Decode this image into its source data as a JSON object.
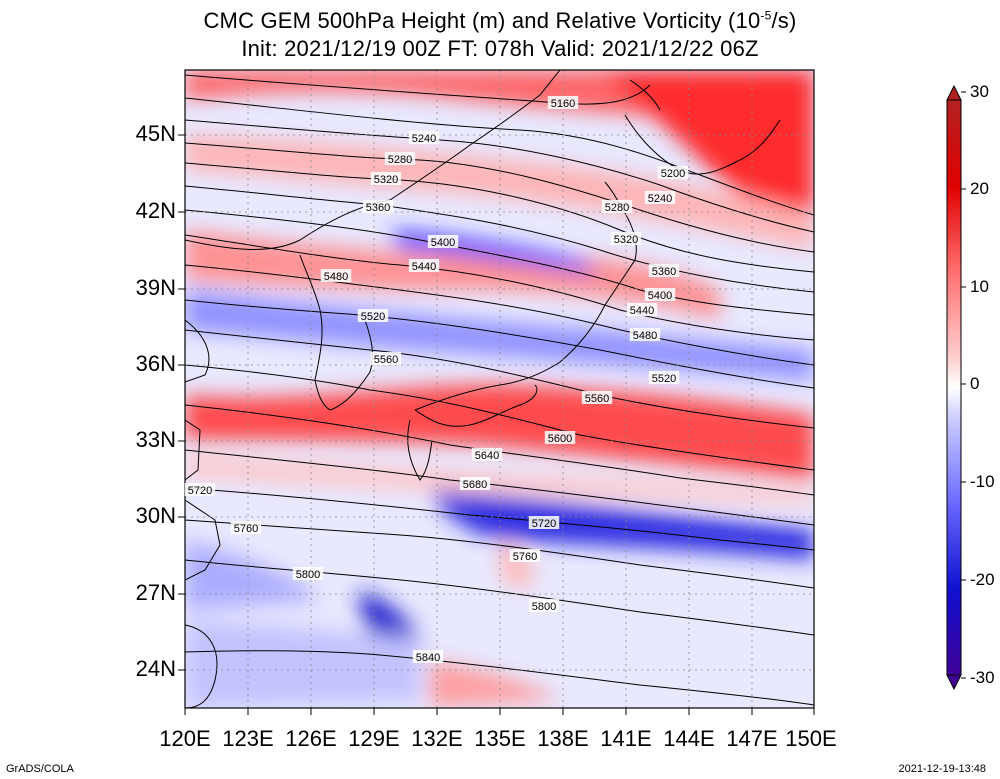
{
  "title": {
    "line1": "CMC GEM 500hPa Height (m) and Relative Vorticity (10",
    "line1_sup": "-5",
    "line1_end": "/s)",
    "line2": "Init: 2021/12/19 00Z  FT: 078h  Valid: 2021/12/22 06Z"
  },
  "map": {
    "lon_range": [
      120,
      150
    ],
    "lat_range": [
      22.5,
      47.5
    ],
    "lat_ticks": [
      "45N",
      "42N",
      "39N",
      "36N",
      "33N",
      "30N",
      "27N",
      "24N"
    ],
    "lon_ticks": [
      "120E",
      "123E",
      "126E",
      "129E",
      "132E",
      "135E",
      "138E",
      "141E",
      "144E",
      "147E",
      "150E"
    ],
    "contour_labels": [
      {
        "text": "5160"
      },
      {
        "text": "5200"
      },
      {
        "text": "5240"
      },
      {
        "text": "5240"
      },
      {
        "text": "5280"
      },
      {
        "text": "5280"
      },
      {
        "text": "5320"
      },
      {
        "text": "5320"
      },
      {
        "text": "5360"
      },
      {
        "text": "5360"
      },
      {
        "text": "5400"
      },
      {
        "text": "5400"
      },
      {
        "text": "5440"
      },
      {
        "text": "5440"
      },
      {
        "text": "5480"
      },
      {
        "text": "5480"
      },
      {
        "text": "5520"
      },
      {
        "text": "5520"
      },
      {
        "text": "5560"
      },
      {
        "text": "5560"
      },
      {
        "text": "5600"
      },
      {
        "text": "5640"
      },
      {
        "text": "5680"
      },
      {
        "text": "5720"
      },
      {
        "text": "5720"
      },
      {
        "text": "5760"
      },
      {
        "text": "5760"
      },
      {
        "text": "5800"
      },
      {
        "text": "5800"
      },
      {
        "text": "5840"
      }
    ]
  },
  "colorbar": {
    "labels": [
      "30",
      "20",
      "10",
      "0",
      "-10",
      "-20",
      "-30"
    ],
    "colors": [
      "#b22222",
      "#ff0000",
      "#ff6666",
      "#ffb3b3",
      "#ffffff",
      "#b3b3ff",
      "#6666ff",
      "#0000ff",
      "#0000a0",
      "#3f0096"
    ]
  },
  "footer": {
    "left": "GrADS/COLA",
    "right": "2021-12-19-13:48"
  }
}
